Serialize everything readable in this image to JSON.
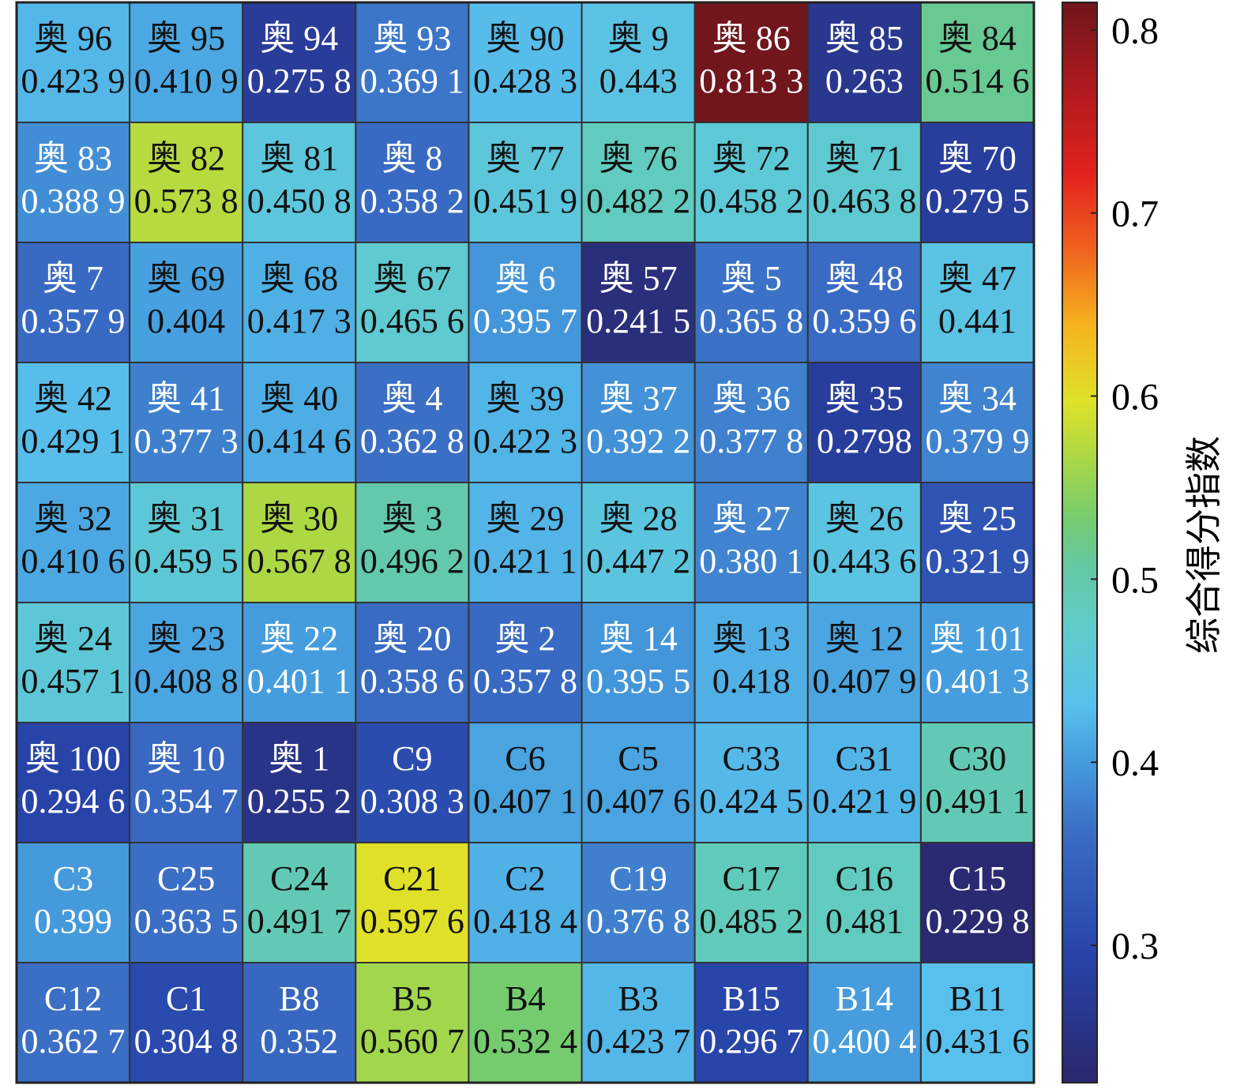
{
  "chart_data": {
    "type": "heatmap",
    "title": "",
    "rows": 9,
    "cols": 9,
    "colorbar": {
      "label": "综合得分指数",
      "min": 0.225,
      "max": 0.815,
      "ticks": [
        "0.3",
        "0.4",
        "0.5",
        "0.6",
        "0.7",
        "0.8"
      ],
      "tick_values": [
        0.3,
        0.4,
        0.5,
        0.6,
        0.7,
        0.8
      ],
      "colormap": "parula-jet",
      "position": "right"
    },
    "cells": [
      [
        [
          "奥 96",
          "0.423 9",
          0.4239
        ],
        [
          "奥 95",
          "0.410 9",
          0.4109
        ],
        [
          "奥 94",
          "0.275 8",
          0.2758
        ],
        [
          "奥 93",
          "0.369 1",
          0.3691
        ],
        [
          "奥 90",
          "0.428 3",
          0.4283
        ],
        [
          "奥 9",
          "0.443",
          0.443
        ],
        [
          "奥 86",
          "0.813 3",
          0.8133
        ],
        [
          "奥 85",
          "0.263",
          0.263
        ],
        [
          "奥 84",
          "0.514 6",
          0.5146
        ]
      ],
      [
        [
          "奥 83",
          "0.388 9",
          0.3889
        ],
        [
          "奥 82",
          "0.573 8",
          0.5738
        ],
        [
          "奥 81",
          "0.450 8",
          0.4508
        ],
        [
          "奥 8",
          "0.358 2",
          0.3582
        ],
        [
          "奥 77",
          "0.451 9",
          0.4519
        ],
        [
          "奥 76",
          "0.482 2",
          0.4822
        ],
        [
          "奥 72",
          "0.458 2",
          0.4582
        ],
        [
          "奥 71",
          "0.463 8",
          0.4638
        ],
        [
          "奥 70",
          "0.279 5",
          0.2795
        ]
      ],
      [
        [
          "奥 7",
          "0.357 9",
          0.3579
        ],
        [
          "奥 69",
          "0.404",
          0.404
        ],
        [
          "奥 68",
          "0.417 3",
          0.4173
        ],
        [
          "奥 67",
          "0.465 6",
          0.4656
        ],
        [
          "奥 6",
          "0.395 7",
          0.3957
        ],
        [
          "奥 57",
          "0.241 5",
          0.2415
        ],
        [
          "奥 5",
          "0.365 8",
          0.3658
        ],
        [
          "奥 48",
          "0.359 6",
          0.3596
        ],
        [
          "奥 47",
          "0.441",
          0.441
        ]
      ],
      [
        [
          "奥 42",
          "0.429 1",
          0.4291
        ],
        [
          "奥 41",
          "0.377 3",
          0.3773
        ],
        [
          "奥 40",
          "0.414 6",
          0.4146
        ],
        [
          "奥 4",
          "0.362 8",
          0.3628
        ],
        [
          "奥 39",
          "0.422 3",
          0.4223
        ],
        [
          "奥 37",
          "0.392 2",
          0.3922
        ],
        [
          "奥 36",
          "0.377 8",
          0.3778
        ],
        [
          "奥 35",
          "0.2798",
          0.2798
        ],
        [
          "奥 34",
          "0.379 9",
          0.3799
        ]
      ],
      [
        [
          "奥 32",
          "0.410 6",
          0.4106
        ],
        [
          "奥 31",
          "0.459 5",
          0.4595
        ],
        [
          "奥 30",
          "0.567 8",
          0.5678
        ],
        [
          "奥 3",
          "0.496 2",
          0.4962
        ],
        [
          "奥 29",
          "0.421 1",
          0.4211
        ],
        [
          "奥 28",
          "0.447 2",
          0.4472
        ],
        [
          "奥 27",
          "0.380 1",
          0.3801
        ],
        [
          "奥 26",
          "0.443 6",
          0.4436
        ],
        [
          "奥 25",
          "0.321 9",
          0.3219
        ]
      ],
      [
        [
          "奥 24",
          "0.457 1",
          0.4571
        ],
        [
          "奥 23",
          "0.408 8",
          0.4088
        ],
        [
          "奥 22",
          "0.401 1",
          0.4011
        ],
        [
          "奥 20",
          "0.358 6",
          0.3586
        ],
        [
          "奥 2",
          "0.357 8",
          0.3578
        ],
        [
          "奥 14",
          "0.395 5",
          0.3955
        ],
        [
          "奥 13",
          "0.418",
          0.418
        ],
        [
          "奥 12",
          "0.407 9",
          0.4079
        ],
        [
          "奥 101",
          "0.401 3",
          0.4013
        ]
      ],
      [
        [
          "奥 100",
          "0.294 6",
          0.2946
        ],
        [
          "奥 10",
          "0.354 7",
          0.3547
        ],
        [
          "奥 1",
          "0.255 2",
          0.2552
        ],
        [
          "C9",
          "0.308 3",
          0.3083
        ],
        [
          "C6",
          "0.407 1",
          0.4071
        ],
        [
          "C5",
          "0.407 6",
          0.4076
        ],
        [
          "C33",
          "0.424 5",
          0.4245
        ],
        [
          "C31",
          "0.421 9",
          0.4219
        ],
        [
          "C30",
          "0.491 1",
          0.4911
        ]
      ],
      [
        [
          "C3",
          "0.399",
          0.399
        ],
        [
          "C25",
          "0.363 5",
          0.3635
        ],
        [
          "C24",
          "0.491 7",
          0.4917
        ],
        [
          "C21",
          "0.597 6",
          0.5976
        ],
        [
          "C2",
          "0.418 4",
          0.4184
        ],
        [
          "C19",
          "0.376 8",
          0.3768
        ],
        [
          "C17",
          "0.485 2",
          0.4852
        ],
        [
          "C16",
          "0.481",
          0.481
        ],
        [
          "C15",
          "0.229 8",
          0.2298
        ]
      ],
      [
        [
          "C12",
          "0.362 7",
          0.3627
        ],
        [
          "C1",
          "0.304 8",
          0.3048
        ],
        [
          "B8",
          "0.352",
          0.352
        ],
        [
          "B5",
          "0.560 7",
          0.5607
        ],
        [
          "B4",
          "0.532 4",
          0.5324
        ],
        [
          "B3",
          "0.423 7",
          0.4237
        ],
        [
          "B15",
          "0.296 7",
          0.2967
        ],
        [
          "B14",
          "0.400 4",
          0.4004
        ],
        [
          "B11",
          "0.431 6",
          0.4316
        ]
      ]
    ]
  }
}
